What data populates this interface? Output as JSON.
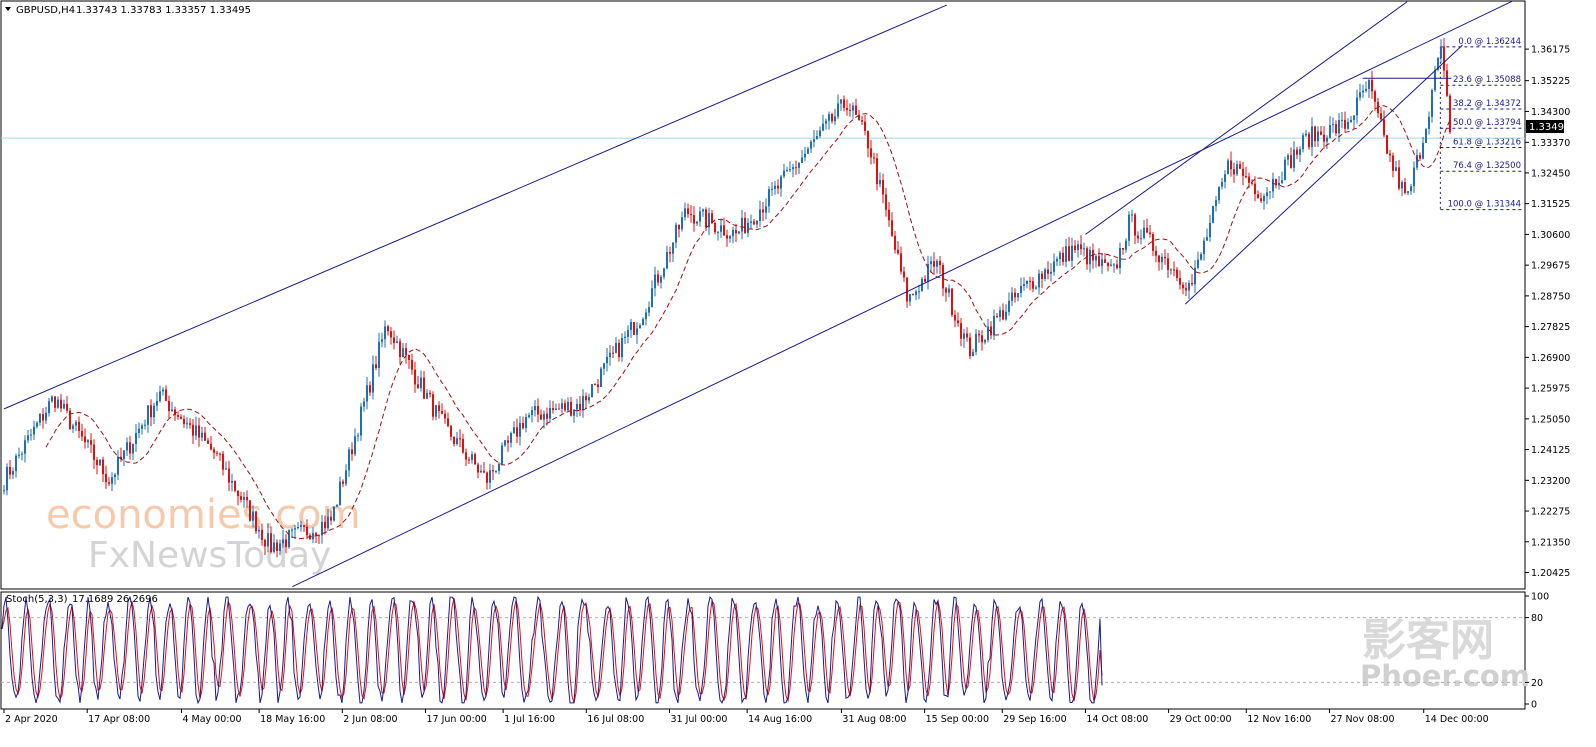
{
  "header": {
    "symbol_label": "GBPUSD,H4",
    "ohlc": "1.33743 1.33783 1.33357 1.33495",
    "dropdown_icon": "triangle-down-icon"
  },
  "indicator": {
    "label": "Stoch(5,3,3)",
    "values": "17.1689 26.2696",
    "levels": [
      "100",
      "80",
      "20",
      "0"
    ]
  },
  "price_axis": {
    "ticks": [
      "1.36175",
      "1.35225",
      "1.34300",
      "1.33370",
      "1.32450",
      "1.31525",
      "1.30600",
      "1.29675",
      "1.28750",
      "1.27825",
      "1.26900",
      "1.25975",
      "1.25050",
      "1.24125",
      "1.23200",
      "1.22275",
      "1.21350",
      "1.20425"
    ],
    "current_price": "1.33495"
  },
  "time_axis": {
    "labels": [
      "2 Apr 2020",
      "17 Apr 08:00",
      "4 May 00:00",
      "18 May 16:00",
      "2 Jun 08:00",
      "17 Jun 00:00",
      "1 Jul 16:00",
      "16 Jul 08:00",
      "31 Jul 00:00",
      "14 Aug 16:00",
      "31 Aug 08:00",
      "15 Sep 00:00",
      "29 Sep 16:00",
      "14 Oct 08:00",
      "29 Oct 00:00",
      "12 Nov 16:00",
      "27 Nov 08:00",
      "14 Dec 00:00"
    ]
  },
  "fibonacci": {
    "levels": [
      "0.0 @ 1.36244",
      "23.6 @ 1.35088",
      "38.2 @ 1.34372",
      "50.0 @ 1.33794",
      "61.8 @ 1.33216",
      "76.4 @ 1.32500",
      "100.0 @ 1.31344"
    ]
  },
  "watermarks": {
    "brand_top": "economies.com",
    "brand_bottom": "FxNewsToday",
    "site_cn": "影客网",
    "site_en": "Phoer.com"
  },
  "colors": {
    "bull_candle": "#1e6fb5",
    "bear_candle": "#e01010",
    "moving_average": "#a01010",
    "trend_lines": "#1a1a8c",
    "fib_lines": "#1a1a8c",
    "current_price_line": "#a8d8ea",
    "stoch_main": "#1a1a8c",
    "stoch_signal": "#e01010"
  },
  "chart_data": {
    "type": "candlestick",
    "symbol": "GBPUSD",
    "timeframe": "H4",
    "price_anchors": [
      {
        "date": "2 Apr 2020",
        "price": 1.232
      },
      {
        "date": "11 Apr 2020",
        "price": 1.257
      },
      {
        "date": "21 Apr 2020",
        "price": 1.232
      },
      {
        "date": "30 Apr 2020",
        "price": 1.258
      },
      {
        "date": "10 May 2020",
        "price": 1.24
      },
      {
        "date": "20 May 2020",
        "price": 1.212
      },
      {
        "date": "31 May 2020",
        "price": 1.22
      },
      {
        "date": "10 Jun 2020",
        "price": 1.279
      },
      {
        "date": "20 Jun 2020",
        "price": 1.249
      },
      {
        "date": "28 Jun 2020",
        "price": 1.232
      },
      {
        "date": "5 Jul 2020",
        "price": 1.251
      },
      {
        "date": "15 Jul 2020",
        "price": 1.255
      },
      {
        "date": "26 Jul 2020",
        "price": 1.282
      },
      {
        "date": "3 Aug 2020",
        "price": 1.313
      },
      {
        "date": "12 Aug 2020",
        "price": 1.306
      },
      {
        "date": "19 Aug 2020",
        "price": 1.319
      },
      {
        "date": "1 Sep 2020",
        "price": 1.346
      },
      {
        "date": "5 Sep 2020",
        "price": 1.333
      },
      {
        "date": "12 Sep 2020",
        "price": 1.286
      },
      {
        "date": "17 Sep 2020",
        "price": 1.298
      },
      {
        "date": "23 Sep 2020",
        "price": 1.271
      },
      {
        "date": "3 Oct 2020",
        "price": 1.29
      },
      {
        "date": "12 Oct 2020",
        "price": 1.302
      },
      {
        "date": "19 Oct 2020",
        "price": 1.294
      },
      {
        "date": "22 Oct 2020",
        "price": 1.31
      },
      {
        "date": "2 Nov 2020",
        "price": 1.29
      },
      {
        "date": "9 Nov 2020",
        "price": 1.328
      },
      {
        "date": "15 Nov 2020",
        "price": 1.318
      },
      {
        "date": "23 Nov 2020",
        "price": 1.335
      },
      {
        "date": "30 Nov 2020",
        "price": 1.339
      },
      {
        "date": "4 Dec 2020",
        "price": 1.351
      },
      {
        "date": "8 Dec 2020",
        "price": 1.328
      },
      {
        "date": "11 Dec 2020",
        "price": 1.316
      },
      {
        "date": "14 Dec 2020",
        "price": 1.336
      },
      {
        "date": "17 Dec 2020",
        "price": 1.362
      },
      {
        "date": "19 Dec 2020",
        "price": 1.335
      }
    ],
    "trend_lines": [
      {
        "name": "channel-upper",
        "from": {
          "date": "2 Apr 2020",
          "price": 1.2535
        },
        "to": {
          "date": "19 Sep 2020",
          "price": 1.375
        }
      },
      {
        "name": "channel-lower",
        "from": {
          "date": "24 May 2020",
          "price": 1.2
        },
        "to": {
          "date": "31 Dec 2020",
          "price": 1.377
        }
      },
      {
        "name": "inner-upper",
        "from": {
          "date": "14 Oct 2020",
          "price": 1.306
        },
        "to": {
          "date": "11 Dec 2020",
          "price": 1.376
        }
      },
      {
        "name": "inner-lower",
        "from": {
          "date": "1 Nov 2020",
          "price": 1.285
        },
        "to": {
          "date": "21 Dec 2020",
          "price": 1.363
        }
      },
      {
        "name": "resistance",
        "from": {
          "date": "3 Dec 2020",
          "price": 1.353
        },
        "to": {
          "date": "19 Dec 2020",
          "price": 1.353
        }
      }
    ],
    "fib_levels": [
      {
        "ratio": "0.0",
        "price": 1.36244
      },
      {
        "ratio": "23.6",
        "price": 1.35088
      },
      {
        "ratio": "38.2",
        "price": 1.34372
      },
      {
        "ratio": "50.0",
        "price": 1.33794
      },
      {
        "ratio": "61.8",
        "price": 1.33216
      },
      {
        "ratio": "76.4",
        "price": 1.325
      },
      {
        "ratio": "100.0",
        "price": 1.31344
      }
    ],
    "current_price": 1.33495,
    "ylim": [
      1.2005,
      1.3675
    ],
    "stochastic": {
      "k": 17.1689,
      "d": 26.2696,
      "levels": [
        80,
        20
      ],
      "range": [
        0,
        100
      ]
    }
  }
}
